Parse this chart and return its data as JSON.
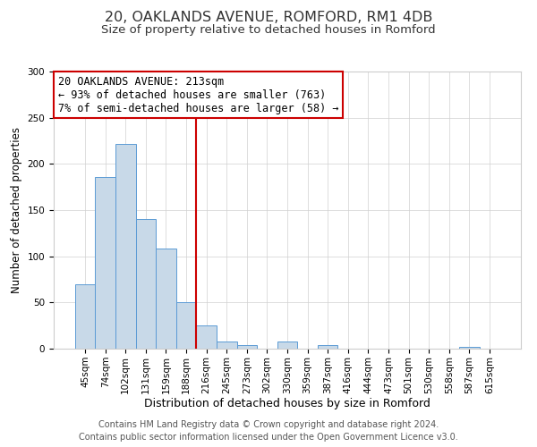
{
  "title": "20, OAKLANDS AVENUE, ROMFORD, RM1 4DB",
  "subtitle": "Size of property relative to detached houses in Romford",
  "xlabel": "Distribution of detached houses by size in Romford",
  "ylabel": "Number of detached properties",
  "bar_labels": [
    "45sqm",
    "74sqm",
    "102sqm",
    "131sqm",
    "159sqm",
    "188sqm",
    "216sqm",
    "245sqm",
    "273sqm",
    "302sqm",
    "330sqm",
    "359sqm",
    "387sqm",
    "416sqm",
    "444sqm",
    "473sqm",
    "501sqm",
    "530sqm",
    "558sqm",
    "587sqm",
    "615sqm"
  ],
  "bar_values": [
    70,
    186,
    222,
    140,
    108,
    50,
    25,
    8,
    4,
    0,
    8,
    0,
    4,
    0,
    0,
    0,
    0,
    0,
    0,
    2,
    0
  ],
  "bar_color": "#c8d9e8",
  "bar_edge_color": "#5b9bd5",
  "vline_color": "#cc0000",
  "ylim": [
    0,
    300
  ],
  "yticks": [
    0,
    50,
    100,
    150,
    200,
    250,
    300
  ],
  "annotation_title": "20 OAKLANDS AVENUE: 213sqm",
  "annotation_line1": "← 93% of detached houses are smaller (763)",
  "annotation_line2": "7% of semi-detached houses are larger (58) →",
  "annotation_box_edgecolor": "#cc0000",
  "footer1": "Contains HM Land Registry data © Crown copyright and database right 2024.",
  "footer2": "Contains public sector information licensed under the Open Government Licence v3.0.",
  "title_fontsize": 11.5,
  "subtitle_fontsize": 9.5,
  "xlabel_fontsize": 9,
  "ylabel_fontsize": 8.5,
  "tick_fontsize": 7.5,
  "annotation_fontsize": 8.5,
  "footer_fontsize": 7
}
